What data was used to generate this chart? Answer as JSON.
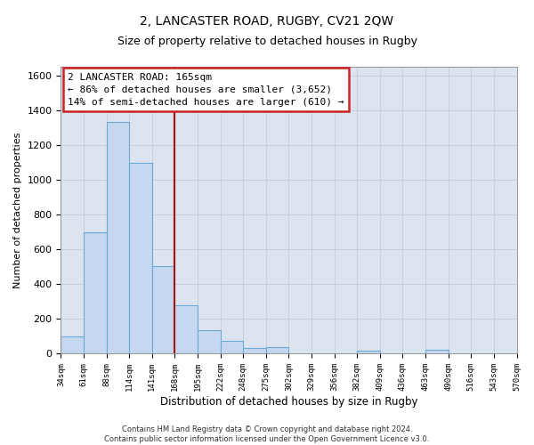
{
  "title": "2, LANCASTER ROAD, RUGBY, CV21 2QW",
  "subtitle": "Size of property relative to detached houses in Rugby",
  "xlabel": "Distribution of detached houses by size in Rugby",
  "ylabel": "Number of detached properties",
  "bar_color": "#c5d8ef",
  "bar_edge_color": "#6aaad4",
  "grid_color": "#c8d0dc",
  "background_color": "#dce4f0",
  "bins": [
    "34sqm",
    "61sqm",
    "88sqm",
    "114sqm",
    "141sqm",
    "168sqm",
    "195sqm",
    "222sqm",
    "248sqm",
    "275sqm",
    "302sqm",
    "329sqm",
    "356sqm",
    "382sqm",
    "409sqm",
    "436sqm",
    "463sqm",
    "490sqm",
    "516sqm",
    "543sqm",
    "570sqm"
  ],
  "values": [
    95,
    695,
    1330,
    1095,
    500,
    275,
    135,
    70,
    32,
    35,
    0,
    0,
    0,
    15,
    0,
    0,
    20,
    0,
    0,
    0
  ],
  "ylim": [
    0,
    1650
  ],
  "yticks": [
    0,
    200,
    400,
    600,
    800,
    1000,
    1200,
    1400,
    1600
  ],
  "property_line_x": 5,
  "annotation_line1": "2 LANCASTER ROAD: 165sqm",
  "annotation_line2": "← 86% of detached houses are smaller (3,652)",
  "annotation_line3": "14% of semi-detached houses are larger (610) →",
  "annotation_box_color": "#ffffff",
  "annotation_border_color": "#cc2222",
  "red_line_color": "#aa1111",
  "title_fontsize": 10,
  "subtitle_fontsize": 9,
  "footer": "Contains HM Land Registry data © Crown copyright and database right 2024.\nContains public sector information licensed under the Open Government Licence v3.0."
}
